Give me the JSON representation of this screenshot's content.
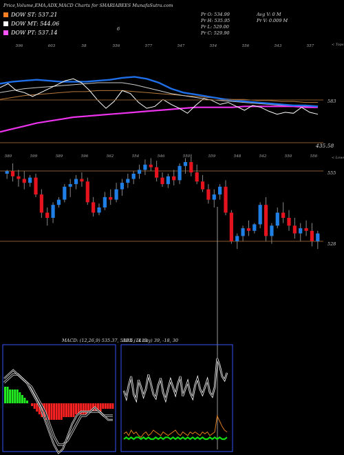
{
  "header": {
    "title": "Price,Volume,EMA,ADX,MACD Charts for SHARIABEES MunafaSutra.com"
  },
  "legend": [
    {
      "label": "DOW ST: 537.21",
      "color": "#ff7f27"
    },
    {
      "label": "DOW MT: 544.06",
      "color": "#ffffff"
    },
    {
      "label": "DOW PT: 537.14",
      "color": "#ff55ff"
    }
  ],
  "stats": {
    "pr_o": "Pr O: 534.99",
    "pr_h": "Pr H: 535.95",
    "pr_l": "Pr L: 529.00",
    "pr_c": "Pr C: 529.90",
    "avg_v": "Avg V: 0 M",
    "pr_v": "Pr V: 0.009 M",
    "marker": "6"
  },
  "top_axis_label": "< Tops",
  "lows_axis_label": "< Lows",
  "macd_label": "MACD: (12,26,9) 535.37, 538.5, -3.13",
  "adx_label": "ADX (14 day) 39, -18, 30",
  "colors": {
    "background": "#000000",
    "bull": "#1f7fe5",
    "bear": "#e5131d",
    "ema_blue": "#1f6fe8",
    "ema_magenta": "#ee33ee",
    "level_line": "#8a5a2c",
    "macd_green": "#22ee22",
    "macd_red": "#ff2222",
    "adx_green": "#11dd11",
    "adx_orange": "#e07b1a",
    "panel_border": "#3355ff"
  },
  "chart_data": [
    {
      "type": "candlestick",
      "title": "Price,Volume,EMA,ADX,MACD Charts for SHARIABEES MunafaSutra.com",
      "ylim": [
        320,
        560
      ],
      "level_labels": [
        "583",
        "555",
        "528",
        "435.58"
      ],
      "top_labels": [
        "596",
        "603",
        "58",
        "556",
        "577",
        "547",
        "554",
        "556",
        "543",
        "557"
      ],
      "low_labels": [
        "580",
        "599",
        "589",
        "596",
        "562",
        "554",
        "546",
        "550",
        "559",
        "548",
        "542",
        "550",
        "556"
      ],
      "series": [
        {
          "name": "candles",
          "ohlc": [
            [
              538,
              541,
              534,
              540
            ],
            [
              540,
              546,
              532,
              536
            ],
            [
              536,
              541,
              528,
              534
            ],
            [
              534,
              540,
              526,
              531
            ],
            [
              531,
              537,
              528,
              535
            ],
            [
              535,
              538,
              520,
              522
            ],
            [
              522,
              526,
              504,
              508
            ],
            [
              508,
              512,
              498,
              504
            ],
            [
              504,
              516,
              500,
              514
            ],
            [
              514,
              520,
              512,
              518
            ],
            [
              518,
              530,
              516,
              528
            ],
            [
              528,
              534,
              520,
              530
            ],
            [
              530,
              537,
              526,
              534
            ],
            [
              534,
              539,
              528,
              532
            ],
            [
              532,
              535,
              514,
              516
            ],
            [
              516,
              520,
              505,
              508
            ],
            [
              508,
              515,
              506,
              512
            ],
            [
              512,
              524,
              510,
              520
            ],
            [
              520,
              526,
              514,
              518
            ],
            [
              518,
              531,
              516,
              526
            ],
            [
              526,
              534,
              521,
              531
            ],
            [
              531,
              538,
              527,
              534
            ],
            [
              534,
              540,
              530,
              538
            ],
            [
              538,
              545,
              534,
              541
            ],
            [
              541,
              549,
              537,
              545
            ],
            [
              545,
              550,
              540,
              543
            ],
            [
              543,
              548,
              532,
              535
            ],
            [
              535,
              539,
              528,
              530
            ],
            [
              530,
              538,
              527,
              536
            ],
            [
              536,
              541,
              529,
              533
            ],
            [
              533,
              546,
              530,
              544
            ],
            [
              544,
              550,
              538,
              547
            ],
            [
              547,
              553,
              536,
              539
            ],
            [
              539,
              545,
              530,
              532
            ],
            [
              532,
              537,
              524,
              526
            ],
            [
              526,
              530,
              515,
              518
            ],
            [
              518,
              526,
              512,
              522
            ],
            [
              522,
              530,
              518,
              528
            ],
            [
              528,
              533,
              506,
              508
            ],
            [
              508,
              510,
              484,
              486
            ],
            [
              486,
              492,
              480,
              490
            ],
            [
              490,
              498,
              486,
              496
            ],
            [
              496,
              502,
              490,
              494
            ],
            [
              494,
              500,
              492,
              499
            ],
            [
              499,
              516,
              496,
              514
            ],
            [
              514,
              520,
              486,
              490
            ],
            [
              490,
              500,
              484,
              498
            ],
            [
              498,
              512,
              496,
              508
            ],
            [
              508,
              516,
              500,
              504
            ],
            [
              504,
              510,
              494,
              498
            ],
            [
              498,
              504,
              488,
              492
            ],
            [
              492,
              500,
              486,
              496
            ],
            [
              496,
              502,
              490,
              494
            ],
            [
              494,
              500,
              482,
              486
            ],
            [
              486,
              494,
              480,
              492
            ]
          ]
        },
        {
          "name": "ema_fast",
          "values": [
            545,
            547,
            548,
            549,
            548,
            547,
            547,
            547,
            548,
            549,
            551,
            552,
            550,
            546,
            540,
            536,
            534,
            532,
            530,
            528,
            527,
            526,
            525,
            524,
            523,
            523,
            522
          ]
        },
        {
          "name": "ema_mid",
          "values": [
            536,
            538,
            540,
            541,
            542,
            543,
            544,
            545,
            546,
            546,
            546,
            544,
            541,
            538,
            535,
            533,
            531,
            529,
            528,
            527,
            526,
            525,
            524,
            523,
            522,
            522,
            521
          ]
        },
        {
          "name": "ema_slow",
          "values": [
            529,
            531,
            533,
            534,
            535,
            536,
            537,
            537,
            538,
            538,
            538,
            537,
            536,
            535,
            534,
            533,
            532,
            531,
            530,
            529,
            529,
            528,
            528,
            527,
            527,
            526,
            526
          ]
        },
        {
          "name": "ema_magenta",
          "values": [
            496,
            499,
            502,
            505,
            507,
            509,
            511,
            512,
            513,
            514,
            515,
            516,
            517,
            518,
            519,
            520,
            521,
            521,
            521,
            521,
            522,
            522,
            522,
            522,
            522,
            521,
            521
          ]
        },
        {
          "name": "price_close",
          "values": [
            541,
            545,
            538,
            536,
            532,
            536,
            540,
            544,
            548,
            550,
            546,
            538,
            528,
            520,
            527,
            538,
            535,
            526,
            520,
            522,
            529,
            524,
            520,
            515,
            523,
            530,
            528,
            524,
            526,
            522,
            518,
            523,
            521,
            517,
            514,
            516,
            515,
            521,
            516,
            514
          ]
        }
      ]
    },
    {
      "type": "bar",
      "title": "MACD: (12,26,9) 535.37, 538.5, -3.13",
      "series": [
        {
          "name": "histogram",
          "values": [
            6,
            6,
            5,
            5,
            5,
            5,
            4,
            3,
            2,
            1,
            0,
            -1,
            -2,
            -3,
            -4,
            -5,
            -5,
            -6,
            -6,
            -6,
            -6,
            -6,
            -6,
            -6,
            -5,
            -5,
            -5,
            -5,
            -5,
            -4,
            -4,
            -4,
            -4,
            -4,
            -3,
            -3,
            -3,
            -3,
            -3,
            -3,
            -2,
            -2,
            -2,
            -2,
            -2
          ]
        },
        {
          "name": "macd",
          "values": [
            6,
            7,
            8,
            7,
            6,
            5,
            3,
            1,
            -1,
            -4,
            -7,
            -10,
            -12,
            -11,
            -8,
            -5,
            -3,
            -2,
            -2,
            -2,
            -1,
            -2,
            -3,
            -4,
            -4
          ]
        },
        {
          "name": "signal",
          "values": [
            5,
            6,
            7,
            7,
            6,
            5,
            4,
            2,
            0,
            -2,
            -5,
            -8,
            -10,
            -10,
            -9,
            -7,
            -5,
            -3,
            -3,
            -2,
            -2,
            -2,
            -3,
            -3,
            -3
          ]
        }
      ]
    },
    {
      "type": "line",
      "title": "ADX (14 day) 39, -18, 30",
      "series": [
        {
          "name": "adx",
          "values": [
            32,
            28,
            35,
            40,
            30,
            27,
            38,
            34,
            29,
            33,
            41,
            36,
            30,
            28,
            35,
            39,
            31,
            27,
            33,
            38,
            34,
            30,
            36,
            40,
            29,
            33,
            37,
            31,
            28,
            35,
            39,
            33,
            30,
            34,
            38,
            31,
            29,
            34,
            50,
            46,
            40,
            38,
            42
          ]
        },
        {
          "name": "di_minus",
          "values": [
            8,
            9,
            7,
            10,
            8,
            9,
            7,
            6,
            8,
            9,
            7,
            8,
            10,
            9,
            8,
            7,
            9,
            8,
            7,
            8,
            9,
            10,
            8,
            7,
            9,
            8,
            7,
            9,
            8,
            9,
            8,
            7,
            9,
            8,
            9,
            7,
            8,
            9,
            18,
            15,
            12,
            10,
            9
          ]
        },
        {
          "name": "di_plus",
          "values": [
            5,
            6,
            5,
            6,
            5,
            6,
            6,
            5,
            6,
            5,
            6,
            5,
            5,
            6,
            5,
            6,
            5,
            6,
            6,
            5,
            6,
            5,
            6,
            5,
            6,
            5,
            6,
            5,
            6,
            5,
            6,
            5,
            6,
            5,
            5,
            6,
            5,
            6,
            5,
            6,
            5,
            5,
            6
          ]
        }
      ]
    }
  ]
}
